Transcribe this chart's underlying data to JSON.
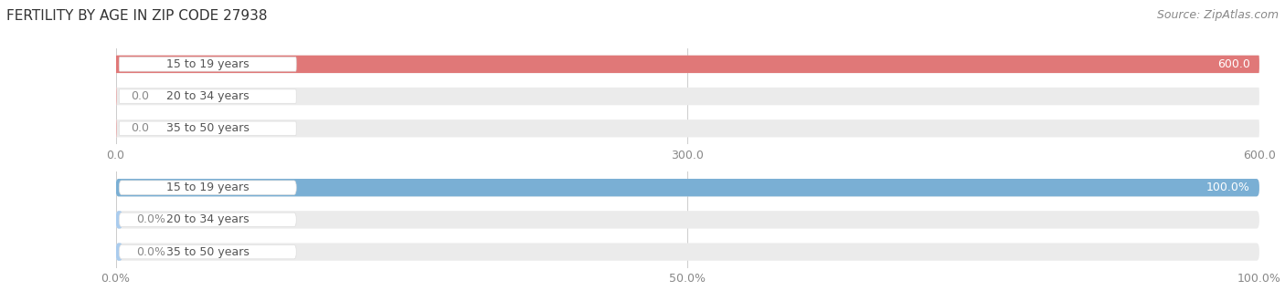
{
  "title": "FERTILITY BY AGE IN ZIP CODE 27938",
  "source": "Source: ZipAtlas.com",
  "top_chart": {
    "categories": [
      "15 to 19 years",
      "20 to 34 years",
      "35 to 50 years"
    ],
    "values": [
      600.0,
      0.0,
      0.0
    ],
    "xlim": [
      0,
      600
    ],
    "xticks": [
      0.0,
      300.0,
      600.0
    ],
    "bar_color": "#E07878",
    "bar_bg_color": "#EBEBEB",
    "stub_color": "#E8AAAA"
  },
  "bottom_chart": {
    "categories": [
      "15 to 19 years",
      "20 to 34 years",
      "35 to 50 years"
    ],
    "values": [
      100.0,
      0.0,
      0.0
    ],
    "xlim": [
      0,
      100
    ],
    "xticks": [
      0.0,
      50.0,
      100.0
    ],
    "xticklabels": [
      "0.0%",
      "50.0%",
      "100.0%"
    ],
    "bar_color": "#7AAFD4",
    "bar_bg_color": "#EBEBEB",
    "stub_color": "#AACCEE"
  },
  "bg_color": "#FFFFFF",
  "grid_color": "#CCCCCC",
  "tick_fontsize": 9,
  "title_fontsize": 11,
  "source_fontsize": 9,
  "cat_label_fontsize": 9,
  "value_fontsize": 9,
  "pill_bg": "#FFFFFF",
  "pill_text_color": "#555555",
  "value_inside_color": "#FFFFFF",
  "value_outside_color": "#888888"
}
